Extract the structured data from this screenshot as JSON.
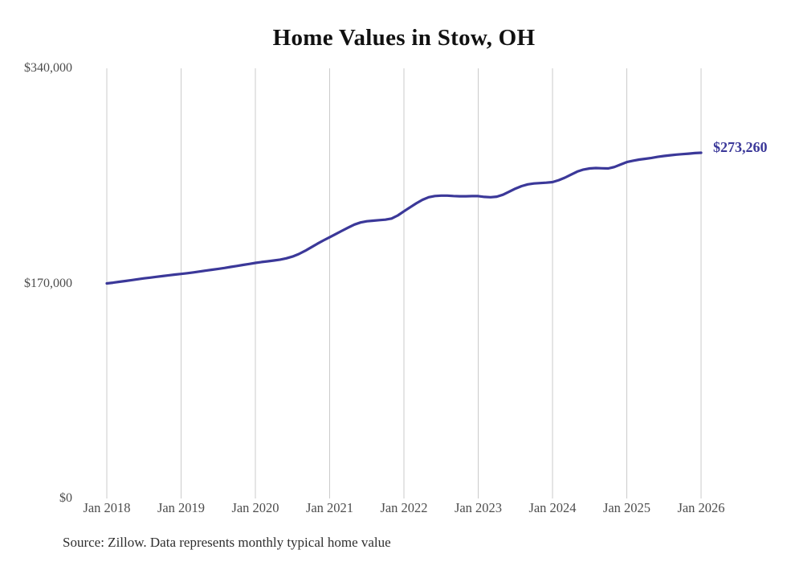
{
  "source_note": "Source: Zillow. Data represents monthly typical home value",
  "colors": {
    "line": "#3b3899",
    "annotation": "#3b3899",
    "gridline": "#cbcbcb",
    "axis_text": "#4d4d4d",
    "title_text": "#111111",
    "source_text": "#2e2e2e",
    "background": "#ffffff"
  },
  "chart_data": {
    "type": "line",
    "title": "Home Values in Stow, OH",
    "frequency": "monthly",
    "grid": "vertical-only",
    "legend": "none",
    "ylim": [
      0,
      340000
    ],
    "y_ticks": [
      {
        "label": "$0",
        "value": 0
      },
      {
        "label": "$170,000",
        "value": 170000
      },
      {
        "label": "$340,000",
        "value": 340000
      }
    ],
    "x_tick_labels": [
      "Jan 2018",
      "Jan 2019",
      "Jan 2020",
      "Jan 2021",
      "Jan 2022",
      "Jan 2023",
      "Jan 2024",
      "Jan 2025",
      "Jan 2026"
    ],
    "end_label": "$273,260",
    "end_value": 273260,
    "series": [
      {
        "name": "Typical home value",
        "start": "2018-01",
        "end": "2026-01",
        "values": [
          170000,
          170600,
          171300,
          171900,
          172600,
          173300,
          174000,
          174600,
          175200,
          175800,
          176400,
          177000,
          177500,
          178100,
          178700,
          179400,
          180100,
          180800,
          181500,
          182200,
          183000,
          183800,
          184600,
          185400,
          186200,
          186900,
          187500,
          188100,
          188800,
          189800,
          191200,
          193200,
          195700,
          198500,
          201300,
          204000,
          206500,
          209000,
          211600,
          214100,
          216500,
          218200,
          219100,
          219600,
          220000,
          220400,
          221300,
          223700,
          227000,
          230200,
          233300,
          236100,
          238100,
          239100,
          239400,
          239400,
          239100,
          238900,
          238900,
          239000,
          239000,
          238400,
          238100,
          238600,
          240100,
          242500,
          244900,
          246900,
          248300,
          249000,
          249300,
          249600,
          250100,
          251600,
          253600,
          256000,
          258400,
          260000,
          260900,
          261200,
          261000,
          260900,
          262000,
          264000,
          265900,
          267000,
          267900,
          268500,
          269200,
          270000,
          270700,
          271300,
          271800,
          272200,
          272600,
          273000,
          273260
        ]
      }
    ]
  }
}
